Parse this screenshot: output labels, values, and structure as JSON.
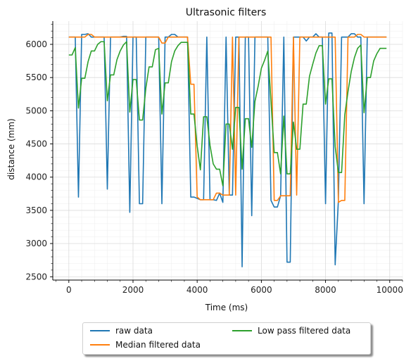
{
  "chart_data": {
    "type": "line",
    "title": "Ultrasonic filters",
    "xlabel": "Time (ms)",
    "ylabel": "distance (mm)",
    "xlim": [
      -500,
      10400
    ],
    "ylim": [
      2450,
      6350
    ],
    "x_ticks": [
      0,
      2000,
      4000,
      6000,
      8000,
      10000
    ],
    "y_ticks": [
      2500,
      3000,
      3500,
      4000,
      4500,
      5000,
      5500,
      6000
    ],
    "grid": true,
    "legend_placement": "bottom-center, below axes",
    "series": [
      {
        "name": "raw data",
        "color": "#1f77b4",
        "points": [
          [
            0,
            6110
          ],
          [
            100,
            6110
          ],
          [
            200,
            6110
          ],
          [
            300,
            3700
          ],
          [
            400,
            6150
          ],
          [
            500,
            6150
          ],
          [
            600,
            6160
          ],
          [
            700,
            6110
          ],
          [
            800,
            6110
          ],
          [
            900,
            6110
          ],
          [
            1000,
            6110
          ],
          [
            1100,
            6110
          ],
          [
            1200,
            3820
          ],
          [
            1300,
            6110
          ],
          [
            1400,
            6110
          ],
          [
            1500,
            6110
          ],
          [
            1600,
            6110
          ],
          [
            1700,
            6120
          ],
          [
            1800,
            6120
          ],
          [
            1900,
            3470
          ],
          [
            2000,
            6110
          ],
          [
            2100,
            6110
          ],
          [
            2200,
            3600
          ],
          [
            2300,
            3600
          ],
          [
            2400,
            6110
          ],
          [
            2500,
            6110
          ],
          [
            2600,
            6110
          ],
          [
            2700,
            6110
          ],
          [
            2800,
            6110
          ],
          [
            2900,
            3600
          ],
          [
            3000,
            6110
          ],
          [
            3100,
            6110
          ],
          [
            3200,
            6150
          ],
          [
            3300,
            6150
          ],
          [
            3400,
            6110
          ],
          [
            3500,
            6110
          ],
          [
            3600,
            6110
          ],
          [
            3700,
            6110
          ],
          [
            3800,
            3700
          ],
          [
            3900,
            3700
          ],
          [
            4000,
            3680
          ],
          [
            4100,
            3660
          ],
          [
            4200,
            3660
          ],
          [
            4300,
            6110
          ],
          [
            4400,
            3660
          ],
          [
            4500,
            3660
          ],
          [
            4600,
            3650
          ],
          [
            4700,
            3760
          ],
          [
            4800,
            3620
          ],
          [
            4900,
            6110
          ],
          [
            5000,
            3730
          ],
          [
            5100,
            3730
          ],
          [
            5200,
            6110
          ],
          [
            5300,
            6110
          ],
          [
            5400,
            2650
          ],
          [
            5500,
            6110
          ],
          [
            5600,
            6110
          ],
          [
            5700,
            3420
          ],
          [
            5800,
            6110
          ],
          [
            5900,
            6110
          ],
          [
            6000,
            6110
          ],
          [
            6100,
            6110
          ],
          [
            6200,
            6110
          ],
          [
            6300,
            3650
          ],
          [
            6400,
            3550
          ],
          [
            6500,
            3550
          ],
          [
            6600,
            3720
          ],
          [
            6700,
            6110
          ],
          [
            6800,
            2720
          ],
          [
            6900,
            2720
          ],
          [
            7000,
            6110
          ],
          [
            7100,
            6110
          ],
          [
            7200,
            6110
          ],
          [
            7300,
            6110
          ],
          [
            7400,
            6050
          ],
          [
            7500,
            6110
          ],
          [
            7600,
            6110
          ],
          [
            7700,
            6160
          ],
          [
            7800,
            6110
          ],
          [
            7900,
            6110
          ],
          [
            8000,
            3600
          ],
          [
            8100,
            6170
          ],
          [
            8200,
            6170
          ],
          [
            8300,
            2680
          ],
          [
            8400,
            3650
          ],
          [
            8500,
            6110
          ],
          [
            8600,
            6110
          ],
          [
            8700,
            6110
          ],
          [
            8800,
            6160
          ],
          [
            8900,
            6160
          ],
          [
            9000,
            6110
          ],
          [
            9100,
            6110
          ],
          [
            9200,
            3600
          ],
          [
            9300,
            6110
          ],
          [
            9400,
            6110
          ],
          [
            9500,
            6110
          ],
          [
            9600,
            6110
          ],
          [
            9700,
            6110
          ],
          [
            9800,
            6110
          ],
          [
            9900,
            6110
          ]
        ]
      },
      {
        "name": "Median filtered data",
        "color": "#ff7f0e",
        "points": [
          [
            0,
            6110
          ],
          [
            100,
            6110
          ],
          [
            200,
            6110
          ],
          [
            300,
            6110
          ],
          [
            400,
            6110
          ],
          [
            500,
            6110
          ],
          [
            600,
            6150
          ],
          [
            700,
            6150
          ],
          [
            800,
            6110
          ],
          [
            900,
            6110
          ],
          [
            1000,
            6110
          ],
          [
            1100,
            6110
          ],
          [
            1200,
            6110
          ],
          [
            1300,
            6110
          ],
          [
            1400,
            6110
          ],
          [
            1500,
            6110
          ],
          [
            1600,
            6110
          ],
          [
            1700,
            6110
          ],
          [
            1800,
            6110
          ],
          [
            1900,
            6110
          ],
          [
            2000,
            6110
          ],
          [
            2100,
            6110
          ],
          [
            2200,
            6110
          ],
          [
            2300,
            6110
          ],
          [
            2400,
            6110
          ],
          [
            2500,
            6110
          ],
          [
            2600,
            6110
          ],
          [
            2700,
            6110
          ],
          [
            2800,
            6110
          ],
          [
            2900,
            6020
          ],
          [
            3000,
            6020
          ],
          [
            3100,
            6110
          ],
          [
            3200,
            6110
          ],
          [
            3300,
            6110
          ],
          [
            3400,
            6110
          ],
          [
            3500,
            6110
          ],
          [
            3600,
            6110
          ],
          [
            3700,
            6110
          ],
          [
            3800,
            5400
          ],
          [
            3900,
            5400
          ],
          [
            4000,
            3700
          ],
          [
            4100,
            3660
          ],
          [
            4200,
            3660
          ],
          [
            4300,
            3660
          ],
          [
            4400,
            3660
          ],
          [
            4500,
            3660
          ],
          [
            4600,
            3760
          ],
          [
            4700,
            3760
          ],
          [
            4800,
            3730
          ],
          [
            4900,
            3730
          ],
          [
            5000,
            3730
          ],
          [
            5100,
            6110
          ],
          [
            5200,
            3730
          ],
          [
            5300,
            6110
          ],
          [
            5400,
            6110
          ],
          [
            5500,
            6110
          ],
          [
            5600,
            6110
          ],
          [
            5700,
            6110
          ],
          [
            5800,
            6110
          ],
          [
            5900,
            6110
          ],
          [
            6000,
            6110
          ],
          [
            6100,
            6110
          ],
          [
            6200,
            6110
          ],
          [
            6300,
            6110
          ],
          [
            6400,
            3650
          ],
          [
            6500,
            3650
          ],
          [
            6600,
            3720
          ],
          [
            6700,
            3720
          ],
          [
            6800,
            3720
          ],
          [
            6900,
            3720
          ],
          [
            7000,
            6110
          ],
          [
            7100,
            3730
          ],
          [
            7200,
            6110
          ],
          [
            7300,
            6110
          ],
          [
            7400,
            6110
          ],
          [
            7500,
            6110
          ],
          [
            7600,
            6110
          ],
          [
            7700,
            6110
          ],
          [
            7800,
            6110
          ],
          [
            7900,
            6110
          ],
          [
            8000,
            6110
          ],
          [
            8100,
            6110
          ],
          [
            8200,
            6110
          ],
          [
            8300,
            6110
          ],
          [
            8400,
            3620
          ],
          [
            8500,
            3650
          ],
          [
            8600,
            3650
          ],
          [
            8700,
            6110
          ],
          [
            8800,
            6110
          ],
          [
            8900,
            6110
          ],
          [
            9000,
            6150
          ],
          [
            9100,
            6150
          ],
          [
            9200,
            6110
          ],
          [
            9300,
            6110
          ],
          [
            9400,
            6110
          ],
          [
            9500,
            6110
          ],
          [
            9600,
            6110
          ],
          [
            9700,
            6110
          ],
          [
            9800,
            6110
          ],
          [
            9900,
            6110
          ]
        ]
      },
      {
        "name": "Low pass filtered data",
        "color": "#2ca02c",
        "points": [
          [
            0,
            5840
          ],
          [
            100,
            5840
          ],
          [
            200,
            5950
          ],
          [
            300,
            5040
          ],
          [
            400,
            5490
          ],
          [
            500,
            5490
          ],
          [
            600,
            5740
          ],
          [
            700,
            5900
          ],
          [
            800,
            5900
          ],
          [
            900,
            6000
          ],
          [
            1000,
            6040
          ],
          [
            1100,
            6040
          ],
          [
            1200,
            5150
          ],
          [
            1300,
            5540
          ],
          [
            1400,
            5540
          ],
          [
            1500,
            5770
          ],
          [
            1600,
            5900
          ],
          [
            1700,
            5990
          ],
          [
            1800,
            6040
          ],
          [
            1900,
            4980
          ],
          [
            2000,
            5470
          ],
          [
            2100,
            5470
          ],
          [
            2200,
            4860
          ],
          [
            2300,
            4860
          ],
          [
            2400,
            5340
          ],
          [
            2500,
            5660
          ],
          [
            2600,
            5660
          ],
          [
            2700,
            5920
          ],
          [
            2800,
            5940
          ],
          [
            2900,
            4950
          ],
          [
            3000,
            5420
          ],
          [
            3100,
            5420
          ],
          [
            3200,
            5740
          ],
          [
            3300,
            5900
          ],
          [
            3400,
            5980
          ],
          [
            3500,
            6030
          ],
          [
            3600,
            6030
          ],
          [
            3700,
            6030
          ],
          [
            3800,
            4950
          ],
          [
            3900,
            4950
          ],
          [
            4000,
            4470
          ],
          [
            4100,
            4110
          ],
          [
            4200,
            4910
          ],
          [
            4300,
            4910
          ],
          [
            4400,
            4480
          ],
          [
            4500,
            4200
          ],
          [
            4600,
            4120
          ],
          [
            4700,
            4120
          ],
          [
            4800,
            3870
          ],
          [
            4900,
            4800
          ],
          [
            5000,
            4800
          ],
          [
            5100,
            4420
          ],
          [
            5200,
            5050
          ],
          [
            5300,
            5050
          ],
          [
            5400,
            4120
          ],
          [
            5500,
            4880
          ],
          [
            5600,
            4880
          ],
          [
            5700,
            4450
          ],
          [
            5800,
            5140
          ],
          [
            5900,
            5370
          ],
          [
            6000,
            5640
          ],
          [
            6100,
            5760
          ],
          [
            6200,
            5900
          ],
          [
            6300,
            5140
          ],
          [
            6400,
            4370
          ],
          [
            6500,
            4370
          ],
          [
            6600,
            4050
          ],
          [
            6700,
            4920
          ],
          [
            6800,
            4050
          ],
          [
            6900,
            4050
          ],
          [
            7000,
            4830
          ],
          [
            7100,
            4420
          ],
          [
            7200,
            4420
          ],
          [
            7300,
            5100
          ],
          [
            7400,
            5100
          ],
          [
            7500,
            5520
          ],
          [
            7600,
            5700
          ],
          [
            7700,
            5870
          ],
          [
            7800,
            5980
          ],
          [
            7900,
            5980
          ],
          [
            8000,
            5100
          ],
          [
            8100,
            5480
          ],
          [
            8200,
            5480
          ],
          [
            8300,
            4460
          ],
          [
            8400,
            4070
          ],
          [
            8500,
            4070
          ],
          [
            8600,
            4940
          ],
          [
            8700,
            5290
          ],
          [
            8800,
            5590
          ],
          [
            8900,
            5800
          ],
          [
            9000,
            5940
          ],
          [
            9100,
            5990
          ],
          [
            9200,
            4970
          ],
          [
            9300,
            5500
          ],
          [
            9400,
            5500
          ],
          [
            9500,
            5750
          ],
          [
            9600,
            5860
          ],
          [
            9700,
            5940
          ],
          [
            9800,
            5940
          ],
          [
            9900,
            5940
          ]
        ]
      }
    ]
  }
}
